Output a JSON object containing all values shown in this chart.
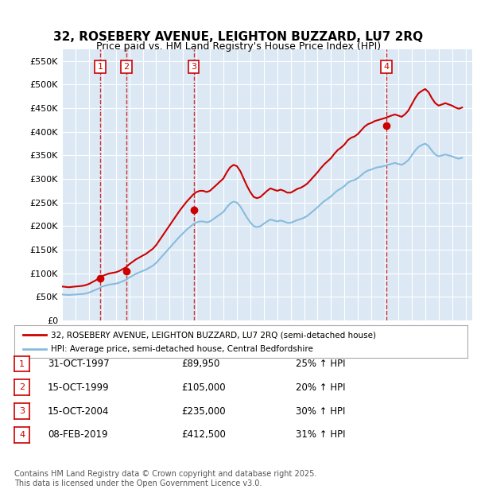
{
  "title": "32, ROSEBERY AVENUE, LEIGHTON BUZZARD, LU7 2RQ",
  "subtitle": "Price paid vs. HM Land Registry's House Price Index (HPI)",
  "background_color": "#dce9f5",
  "plot_bg_color": "#dce9f5",
  "ylim": [
    0,
    575000
  ],
  "yticks": [
    0,
    50000,
    100000,
    150000,
    200000,
    250000,
    300000,
    350000,
    400000,
    450000,
    500000,
    550000
  ],
  "ytick_labels": [
    "£0",
    "£50K",
    "£100K",
    "£150K",
    "£200K",
    "£250K",
    "£300K",
    "£350K",
    "£400K",
    "£450K",
    "£500K",
    "£550K"
  ],
  "xlim_start": 1995.0,
  "xlim_end": 2025.5,
  "xticks": [
    1995,
    1996,
    1997,
    1998,
    1999,
    2000,
    2001,
    2002,
    2003,
    2004,
    2005,
    2006,
    2007,
    2008,
    2009,
    2010,
    2011,
    2012,
    2013,
    2014,
    2015,
    2016,
    2017,
    2018,
    2019,
    2020,
    2021,
    2022,
    2023,
    2024,
    2025
  ],
  "sale_dates": [
    1997.83,
    1999.79,
    2004.79,
    2019.11
  ],
  "sale_prices": [
    89950,
    105000,
    235000,
    412500
  ],
  "sale_labels": [
    "1",
    "2",
    "3",
    "4"
  ],
  "sale_line_color": "#cc0000",
  "sale_dot_color": "#cc0000",
  "hpi_line_color": "#88bbdd",
  "legend_sale_label": "32, ROSEBERY AVENUE, LEIGHTON BUZZARD, LU7 2RQ (semi-detached house)",
  "legend_hpi_label": "HPI: Average price, semi-detached house, Central Bedfordshire",
  "table_rows": [
    {
      "num": "1",
      "date": "31-OCT-1997",
      "price": "£89,950",
      "hpi": "25% ↑ HPI"
    },
    {
      "num": "2",
      "date": "15-OCT-1999",
      "price": "£105,000",
      "hpi": "20% ↑ HPI"
    },
    {
      "num": "3",
      "date": "15-OCT-2004",
      "price": "£235,000",
      "hpi": "30% ↑ HPI"
    },
    {
      "num": "4",
      "date": "08-FEB-2019",
      "price": "£412,500",
      "hpi": "31% ↑ HPI"
    }
  ],
  "footer": "Contains HM Land Registry data © Crown copyright and database right 2025.\nThis data is licensed under the Open Government Licence v3.0.",
  "hpi_data": {
    "years": [
      1995.0,
      1995.25,
      1995.5,
      1995.75,
      1996.0,
      1996.25,
      1996.5,
      1996.75,
      1997.0,
      1997.25,
      1997.5,
      1997.75,
      1998.0,
      1998.25,
      1998.5,
      1998.75,
      1999.0,
      1999.25,
      1999.5,
      1999.75,
      2000.0,
      2000.25,
      2000.5,
      2000.75,
      2001.0,
      2001.25,
      2001.5,
      2001.75,
      2002.0,
      2002.25,
      2002.5,
      2002.75,
      2003.0,
      2003.25,
      2003.5,
      2003.75,
      2004.0,
      2004.25,
      2004.5,
      2004.75,
      2005.0,
      2005.25,
      2005.5,
      2005.75,
      2006.0,
      2006.25,
      2006.5,
      2006.75,
      2007.0,
      2007.25,
      2007.5,
      2007.75,
      2008.0,
      2008.25,
      2008.5,
      2008.75,
      2009.0,
      2009.25,
      2009.5,
      2009.75,
      2010.0,
      2010.25,
      2010.5,
      2010.75,
      2011.0,
      2011.25,
      2011.5,
      2011.75,
      2012.0,
      2012.25,
      2012.5,
      2012.75,
      2013.0,
      2013.25,
      2013.5,
      2013.75,
      2014.0,
      2014.25,
      2014.5,
      2014.75,
      2015.0,
      2015.25,
      2015.5,
      2015.75,
      2016.0,
      2016.25,
      2016.5,
      2016.75,
      2017.0,
      2017.25,
      2017.5,
      2017.75,
      2018.0,
      2018.25,
      2018.5,
      2018.75,
      2019.0,
      2019.25,
      2019.5,
      2019.75,
      2020.0,
      2020.25,
      2020.5,
      2020.75,
      2021.0,
      2021.25,
      2021.5,
      2021.75,
      2022.0,
      2022.25,
      2022.5,
      2022.75,
      2023.0,
      2023.25,
      2023.5,
      2023.75,
      2024.0,
      2024.25,
      2024.5,
      2024.75
    ],
    "values": [
      55000,
      54500,
      54000,
      54500,
      55000,
      55500,
      56000,
      57000,
      59000,
      62000,
      65000,
      68000,
      72000,
      74000,
      76000,
      77000,
      78000,
      80000,
      83000,
      86000,
      91000,
      95000,
      99000,
      102000,
      105000,
      108000,
      112000,
      116000,
      122000,
      130000,
      138000,
      146000,
      154000,
      162000,
      170000,
      178000,
      185000,
      192000,
      198000,
      204000,
      208000,
      210000,
      210000,
      208000,
      210000,
      215000,
      220000,
      225000,
      230000,
      240000,
      248000,
      252000,
      250000,
      242000,
      230000,
      218000,
      208000,
      200000,
      198000,
      200000,
      205000,
      210000,
      214000,
      212000,
      210000,
      212000,
      210000,
      207000,
      207000,
      210000,
      213000,
      215000,
      218000,
      222000,
      228000,
      234000,
      240000,
      247000,
      253000,
      258000,
      263000,
      270000,
      276000,
      280000,
      285000,
      292000,
      296000,
      298000,
      302000,
      308000,
      314000,
      318000,
      320000,
      323000,
      325000,
      326000,
      328000,
      330000,
      332000,
      334000,
      332000,
      330000,
      334000,
      340000,
      350000,
      360000,
      368000,
      372000,
      375000,
      370000,
      360000,
      352000,
      348000,
      350000,
      352000,
      350000,
      348000,
      345000,
      343000,
      345000
    ]
  },
  "sold_hpi_data": {
    "years": [
      1995.0,
      1995.25,
      1995.5,
      1995.75,
      1996.0,
      1996.25,
      1996.5,
      1996.75,
      1997.0,
      1997.25,
      1997.5,
      1997.75,
      1998.0,
      1998.25,
      1998.5,
      1998.75,
      1999.0,
      1999.25,
      1999.5,
      1999.75,
      2000.0,
      2000.25,
      2000.5,
      2000.75,
      2001.0,
      2001.25,
      2001.5,
      2001.75,
      2002.0,
      2002.25,
      2002.5,
      2002.75,
      2003.0,
      2003.25,
      2003.5,
      2003.75,
      2004.0,
      2004.25,
      2004.5,
      2004.75,
      2005.0,
      2005.25,
      2005.5,
      2005.75,
      2006.0,
      2006.25,
      2006.5,
      2006.75,
      2007.0,
      2007.25,
      2007.5,
      2007.75,
      2008.0,
      2008.25,
      2008.5,
      2008.75,
      2009.0,
      2009.25,
      2009.5,
      2009.75,
      2010.0,
      2010.25,
      2010.5,
      2010.75,
      2011.0,
      2011.25,
      2011.5,
      2011.75,
      2012.0,
      2012.25,
      2012.5,
      2012.75,
      2013.0,
      2013.25,
      2013.5,
      2013.75,
      2014.0,
      2014.25,
      2014.5,
      2014.75,
      2015.0,
      2015.25,
      2015.5,
      2015.75,
      2016.0,
      2016.25,
      2016.5,
      2016.75,
      2017.0,
      2017.25,
      2017.5,
      2017.75,
      2018.0,
      2018.25,
      2018.5,
      2018.75,
      2019.0,
      2019.25,
      2019.5,
      2019.75,
      2020.0,
      2020.25,
      2020.5,
      2020.75,
      2021.0,
      2021.25,
      2021.5,
      2021.75,
      2022.0,
      2022.25,
      2022.5,
      2022.75,
      2023.0,
      2023.25,
      2023.5,
      2023.75,
      2024.0,
      2024.25,
      2024.5,
      2024.75
    ],
    "values": [
      71960,
      71200,
      70400,
      71200,
      71960,
      72600,
      73300,
      74900,
      77300,
      81200,
      85100,
      89050,
      94300,
      97000,
      99600,
      100900,
      102100,
      104800,
      108700,
      112600,
      119200,
      124400,
      129600,
      133500,
      137500,
      141400,
      146700,
      151900,
      159800,
      170300,
      180700,
      191200,
      201600,
      212100,
      222600,
      233000,
      242200,
      251300,
      259100,
      267000,
      272300,
      274900,
      274900,
      272300,
      274900,
      281400,
      287900,
      294600,
      301100,
      314200,
      324700,
      329900,
      327300,
      316900,
      301100,
      285400,
      272300,
      261900,
      259300,
      261900,
      268400,
      274900,
      280100,
      277400,
      274900,
      277400,
      274900,
      271000,
      271000,
      274900,
      279100,
      281400,
      285400,
      290600,
      298400,
      306300,
      314200,
      323300,
      331200,
      337700,
      344200,
      353500,
      361400,
      366600,
      373100,
      382300,
      387500,
      390200,
      395400,
      403300,
      411200,
      416300,
      418900,
      422800,
      424900,
      427000,
      429100,
      431800,
      434500,
      436800,
      434500,
      431800,
      437200,
      445100,
      458100,
      471200,
      481600,
      486800,
      490800,
      484200,
      471200,
      460800,
      455600,
      458100,
      460800,
      458100,
      455600,
      451600,
      448900,
      451600
    ]
  }
}
